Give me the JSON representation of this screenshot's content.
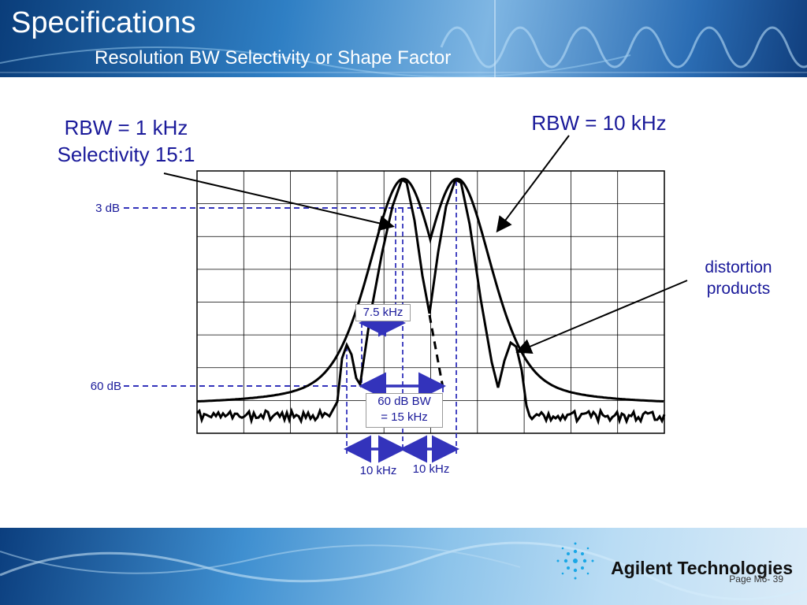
{
  "header": {
    "title": "Specifications",
    "subtitle": "Resolution BW Selectivity or Shape Factor"
  },
  "labels": {
    "rbw1": "RBW = 1 kHz",
    "selectivity": "Selectivity 15:1",
    "rbw10": "RBW = 10 kHz",
    "distortion_line1": "distortion",
    "distortion_line2": "products",
    "db3": "3 dB",
    "db60": "60 dB",
    "bw75": "7.5 kHz",
    "bw60_line1": "60 dB BW",
    "bw60_line2": "= 15 kHz",
    "spacing_left": "10 kHz",
    "spacing_right": "10 kHz"
  },
  "footer": {
    "brand": "Agilent Technologies",
    "page": "Page M6- 39"
  },
  "colors": {
    "annotation": "#1a1a9a",
    "marker": "#3333bb",
    "trace": "#000000"
  },
  "chart_data": {
    "type": "line",
    "title": "",
    "xlabel": "",
    "ylabel": "",
    "grid": true,
    "grid_divisions": {
      "x": 10,
      "y": 8
    },
    "series": [
      {
        "name": "RBW = 10 kHz",
        "values": []
      },
      {
        "name": "RBW = 1 kHz",
        "values": []
      }
    ]
  }
}
